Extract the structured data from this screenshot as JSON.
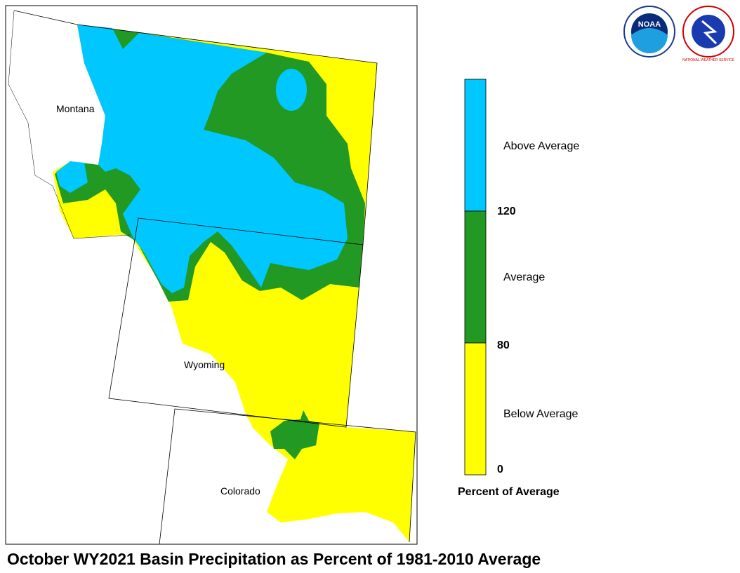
{
  "title": "October WY2021 Basin Precipitation as Percent of 1981-2010 Average",
  "states": [
    "Montana",
    "Wyoming",
    "Colorado"
  ],
  "legend": {
    "title": "Percent of Average",
    "classes": [
      "Above Average",
      "Average",
      "Below Average"
    ],
    "ticks": [
      "120",
      "80",
      "0"
    ]
  },
  "logos": {
    "noaa": "NOAA",
    "nws": "NATIONAL WEATHER SERVICE"
  }
}
